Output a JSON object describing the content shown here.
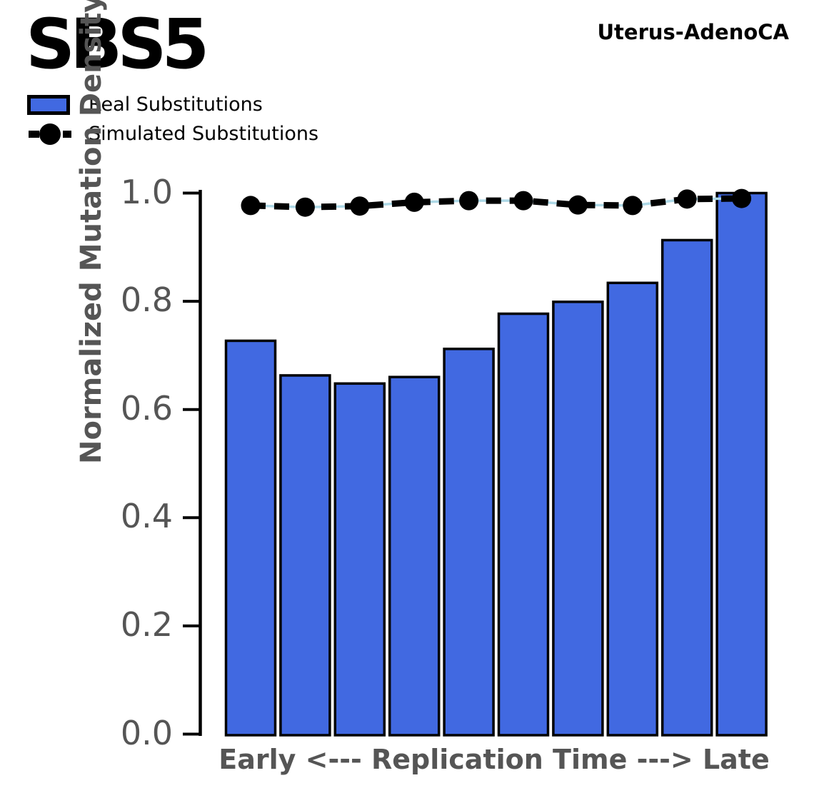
{
  "header": {
    "title": "SBS5",
    "cancer_type": "Uterus-AdenoCA"
  },
  "legend": {
    "items": [
      {
        "label": "Real Substitutions",
        "swatch": "bar",
        "color": "#4169E1"
      },
      {
        "label": "Simulated Substitutions",
        "swatch": "line-marker",
        "color": "#000000"
      }
    ]
  },
  "chart_data": {
    "type": "bar",
    "title": "SBS5",
    "subtitle": "Uterus-AdenoCA",
    "xlabel": "Early <--- Replication Time ---> Late",
    "ylabel": "Normalized Mutation Density",
    "ylim": [
      0.0,
      1.0
    ],
    "grid": false,
    "n_bins": 10,
    "legend_position": "upper-left-outside",
    "yticks": [
      {
        "value": 0.0,
        "label": "0.0"
      },
      {
        "value": 0.2,
        "label": "0.2"
      },
      {
        "value": 0.4,
        "label": "0.4"
      },
      {
        "value": 0.6,
        "label": "0.6"
      },
      {
        "value": 0.8,
        "label": "0.8"
      },
      {
        "value": 1.0,
        "label": "1.0"
      }
    ],
    "series": [
      {
        "name": "Real Substitutions",
        "type": "bar",
        "color": "#4169E1",
        "edge_color": "#000000",
        "values": [
          0.727,
          0.663,
          0.648,
          0.66,
          0.712,
          0.777,
          0.799,
          0.834,
          0.913,
          1.0
        ]
      },
      {
        "name": "Simulated Substitutions",
        "type": "line",
        "line_style": "dashed",
        "marker": "circle",
        "color": "#000000",
        "underlay_color": "#ADD8E6",
        "values": [
          0.977,
          0.974,
          0.976,
          0.983,
          0.986,
          0.986,
          0.978,
          0.977,
          0.989,
          0.99
        ]
      }
    ]
  },
  "colors": {
    "background": "#FFFFFF",
    "axis_text_gray": "#555555",
    "bar_blue": "#4169E1",
    "sim_line_black": "#000000",
    "sim_underlay_lightblue": "#ADD8E6"
  }
}
